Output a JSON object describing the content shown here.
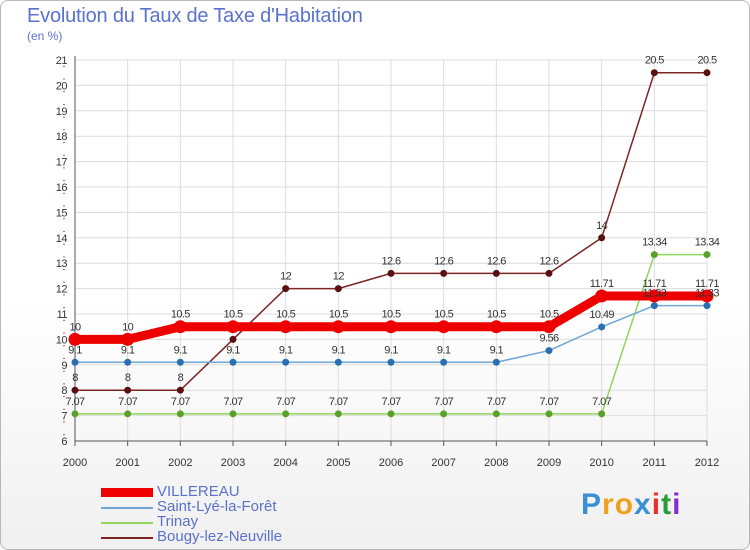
{
  "title": "Evolution du Taux de Taxe d'Habitation",
  "subtitle": "(en %)",
  "logo": {
    "text": "Proxiti",
    "letters": [
      "P",
      "r",
      "o",
      "x",
      "i",
      "t",
      "i"
    ],
    "colors": [
      "#3a8fd6",
      "#f0a020",
      "#f0a020",
      "#3a8fd6",
      "#e83030",
      "#2a9a3a",
      "#8a2bd0"
    ]
  },
  "chart_data": {
    "type": "line",
    "x": [
      "2000",
      "2001",
      "2002",
      "2003",
      "2004",
      "2005",
      "2006",
      "2007",
      "2008",
      "2009",
      "2010",
      "2011",
      "2012"
    ],
    "ylim": [
      6,
      21
    ],
    "yticks": [
      6,
      7,
      8,
      9,
      10,
      11,
      12,
      13,
      14,
      15,
      16,
      17,
      18,
      19,
      20,
      21
    ],
    "grid": true,
    "legend_position": "bottom-left",
    "series": [
      {
        "name": "Bougy-lez-Neuville",
        "color": "#7a2424",
        "values": [
          8,
          8,
          8,
          10,
          12,
          12,
          12.6,
          12.6,
          12.6,
          12.6,
          14,
          20.5,
          20.5
        ],
        "labels": [
          "8",
          "8",
          "8",
          "",
          "12",
          "12",
          "12.6",
          "12.6",
          "12.6",
          "12.6",
          "14",
          "20.5",
          "20.5"
        ]
      },
      {
        "name": "Trinay",
        "color": "#8fd65a",
        "values": [
          7.07,
          7.07,
          7.07,
          7.07,
          7.07,
          7.07,
          7.07,
          7.07,
          7.07,
          7.07,
          7.07,
          13.34,
          13.34
        ],
        "labels": [
          "7.07",
          "7.07",
          "7.07",
          "7.07",
          "7.07",
          "7.07",
          "7.07",
          "7.07",
          "7.07",
          "7.07",
          "7.07",
          "13.34",
          "13.34"
        ]
      },
      {
        "name": "Saint-Lyé-la-Forêt",
        "color": "#6fa7d6",
        "values": [
          9.1,
          9.1,
          9.1,
          9.1,
          9.1,
          9.1,
          9.1,
          9.1,
          9.1,
          9.56,
          10.49,
          11.33,
          11.33
        ],
        "labels": [
          "9.1",
          "9.1",
          "9.1",
          "9.1",
          "9.1",
          "9.1",
          "9.1",
          "9.1",
          "9.1",
          "9.56",
          "10.49",
          "11.33",
          "11.33"
        ]
      },
      {
        "name": "VILLEREAU",
        "color": "#ee0000",
        "values": [
          10,
          10,
          10.5,
          10.5,
          10.5,
          10.5,
          10.5,
          10.5,
          10.5,
          10.5,
          11.71,
          11.71,
          11.71
        ],
        "labels": [
          "10",
          "10",
          "10.5",
          "10.5",
          "10.5",
          "10.5",
          "10.5",
          "10.5",
          "10.5",
          "10.5",
          "11.71",
          "11.71",
          "11.71"
        ]
      }
    ],
    "legend_order": [
      "VILLEREAU",
      "Saint-Lyé-la-Forêt",
      "Trinay",
      "Bougy-lez-Neuville"
    ]
  }
}
